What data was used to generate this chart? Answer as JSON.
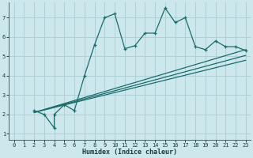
{
  "xlabel": "Humidex (Indice chaleur)",
  "bg_color": "#cce8ec",
  "grid_color": "#aaccd4",
  "line_color": "#1a6b6b",
  "xlim": [
    -0.5,
    23.5
  ],
  "ylim": [
    0.7,
    7.8
  ],
  "xticks": [
    0,
    1,
    2,
    3,
    4,
    5,
    6,
    7,
    8,
    9,
    10,
    11,
    12,
    13,
    14,
    15,
    16,
    17,
    18,
    19,
    20,
    21,
    22,
    23
  ],
  "yticks": [
    1,
    2,
    3,
    4,
    5,
    6,
    7
  ],
  "scatter_x": [
    2,
    3,
    4,
    4,
    5,
    6,
    7,
    8,
    9,
    10,
    11,
    12,
    13,
    14,
    15,
    16,
    17,
    18,
    19,
    20,
    21,
    22,
    23
  ],
  "scatter_y": [
    2.2,
    2.0,
    1.3,
    2.0,
    2.5,
    2.2,
    4.0,
    5.6,
    7.0,
    7.2,
    5.4,
    5.55,
    6.2,
    6.2,
    7.5,
    6.75,
    7.0,
    5.5,
    5.35,
    5.8,
    5.5,
    5.5,
    5.3
  ],
  "reg_lines": [
    {
      "x": [
        2,
        23
      ],
      "y": [
        2.1,
        5.35
      ]
    },
    {
      "x": [
        2,
        23
      ],
      "y": [
        2.1,
        5.05
      ]
    },
    {
      "x": [
        2,
        23
      ],
      "y": [
        2.1,
        4.8
      ]
    }
  ]
}
